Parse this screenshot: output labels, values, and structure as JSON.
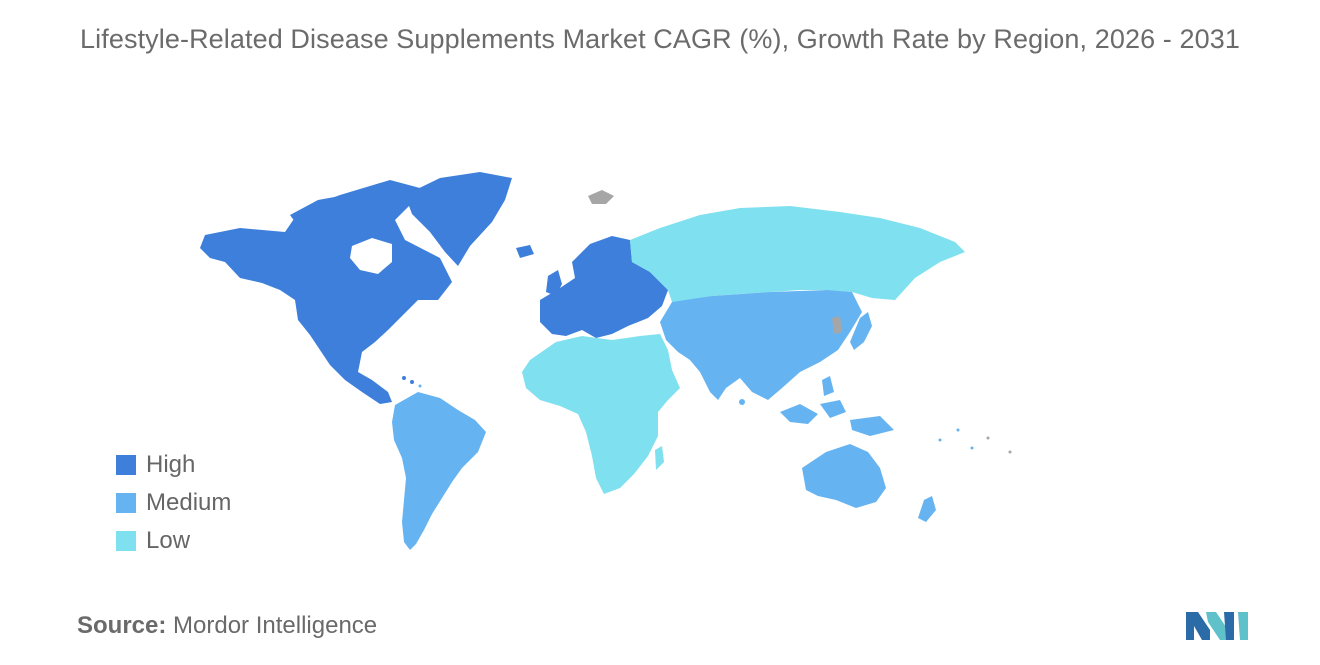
{
  "title": "Lifestyle-Related Disease Supplements Market CAGR (%), Growth Rate by Region, 2026 - 2031",
  "legend": [
    {
      "label": "High",
      "color": "#3d7fdb"
    },
    {
      "label": "Medium",
      "color": "#66b3f2"
    },
    {
      "label": "Low",
      "color": "#7fe0ef"
    }
  ],
  "no_data_color": "#a6a6a6",
  "regions": [
    {
      "name": "North America",
      "level": "High"
    },
    {
      "name": "Europe",
      "level": "High"
    },
    {
      "name": "South America",
      "level": "Medium"
    },
    {
      "name": "Asia-Pacific",
      "level": "Medium"
    },
    {
      "name": "Middle East and Africa",
      "level": "Low"
    }
  ],
  "source": {
    "label": "Source:",
    "value": "Mordor Intelligence"
  },
  "logo_icon": "mordor-intelligence-logo-icon"
}
